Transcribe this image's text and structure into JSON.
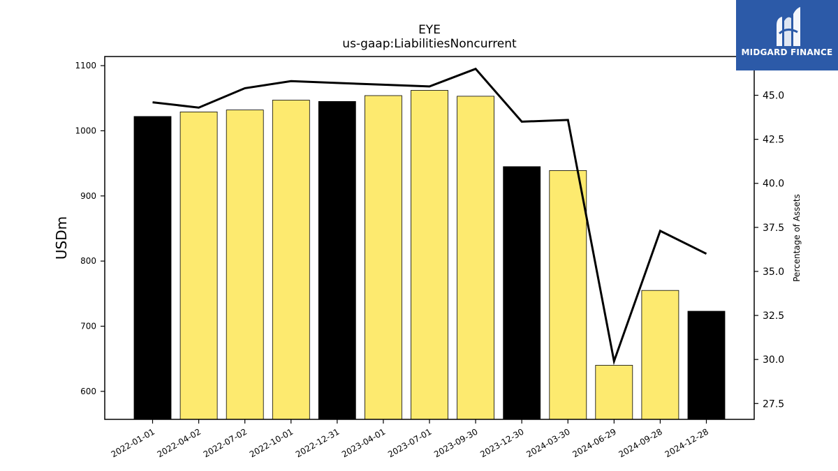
{
  "chart_data": {
    "type": "bar",
    "title": "EYE",
    "subtitle": "us-gaap:LiabilitiesNoncurrent",
    "ylabel": "USDm",
    "ylabel_right": "Percentage of Assets",
    "categories": [
      "2022-01-01",
      "2022-04-02",
      "2022-07-02",
      "2022-10-01",
      "2022-12-31",
      "2023-04-01",
      "2023-07-01",
      "2023-09-30",
      "2023-12-30",
      "2024-03-30",
      "2024-06-29",
      "2024-09-28",
      "2024-12-28"
    ],
    "series": [
      {
        "type": "bar",
        "values": [
          1022,
          1029,
          1032,
          1047,
          1045,
          1054,
          1062,
          1053,
          945,
          939,
          640,
          755,
          723
        ],
        "colors": [
          "#000000",
          "#fdea6f",
          "#fdea6f",
          "#fdea6f",
          "#000000",
          "#fdea6f",
          "#fdea6f",
          "#fdea6f",
          "#000000",
          "#fdea6f",
          "#fdea6f",
          "#fdea6f",
          "#000000"
        ],
        "axis": "left"
      },
      {
        "type": "line",
        "values": [
          44.6,
          44.3,
          45.4,
          45.8,
          45.7,
          45.6,
          45.5,
          46.5,
          43.5,
          43.6,
          29.9,
          37.3,
          36.0
        ],
        "color": "#000000",
        "axis": "right"
      }
    ],
    "ylim": [
      557,
      1114
    ],
    "yticks": [
      600,
      700,
      800,
      900,
      1000,
      1100
    ],
    "ylim_right": [
      26.6,
      47.2
    ],
    "yticks_right": [
      "27.5",
      "30.0",
      "32.5",
      "35.0",
      "37.5",
      "40.0",
      "42.5",
      "45.0"
    ],
    "grid": false
  },
  "logo": {
    "text": "MIDGARD FINANCE",
    "icon": "midgard-logo-icon",
    "background": "#2c5aa8"
  }
}
